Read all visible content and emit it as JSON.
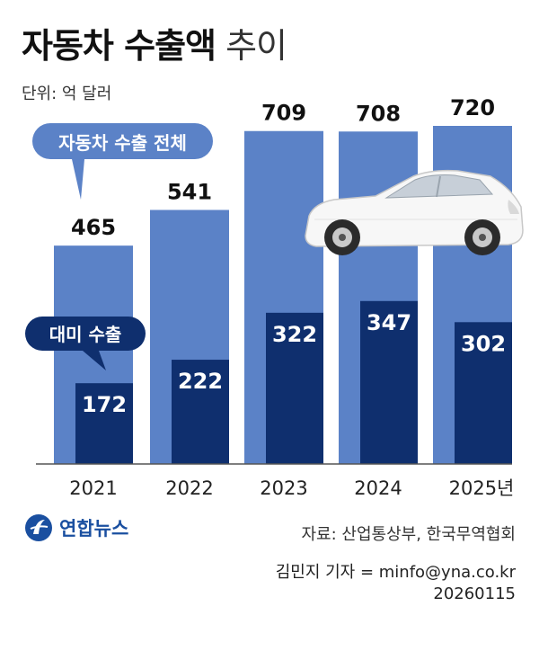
{
  "title_bold": "자동차 수출액",
  "title_light": "추이",
  "unit": "단위: 억 달러",
  "chart_data": {
    "type": "bar",
    "categories": [
      "2021",
      "2022",
      "2023",
      "2024",
      "2025년"
    ],
    "series": [
      {
        "name": "자동차 수출 전체",
        "values": [
          465,
          541,
          709,
          708,
          720
        ],
        "color": "#5b82c7"
      },
      {
        "name": "대미 수출",
        "values": [
          172,
          222,
          322,
          347,
          302
        ],
        "color": "#0f2f6e"
      }
    ],
    "ylim": [
      0,
      800
    ],
    "xlabel": "",
    "ylabel": ""
  },
  "callouts": {
    "total": "자동차 수출 전체",
    "us": "대미 수출"
  },
  "source": "자료: 산업통상부, 한국무역협회",
  "reporter": "김민지 기자 = minfo@yna.co.kr",
  "date": "20260115",
  "logo_text": "연합뉴스"
}
